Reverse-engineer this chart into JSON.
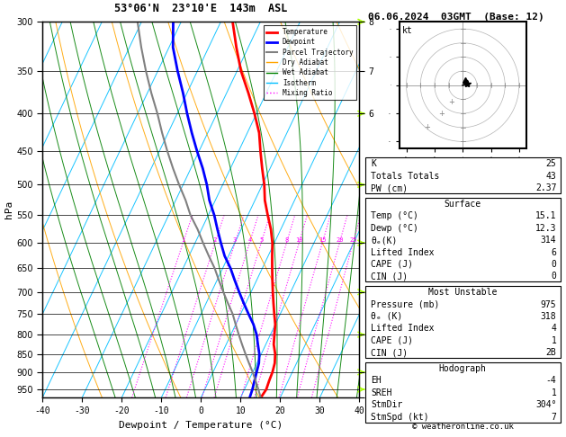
{
  "title_left": "53°06'N  23°10'E  143m  ASL",
  "title_right": "06.06.2024  03GMT  (Base: 12)",
  "xlabel": "Dewpoint / Temperature (°C)",
  "ylabel_left": "hPa",
  "xlim": [
    -40,
    40
  ],
  "pmin": 300,
  "pmax": 975,
  "temp_color": "#FF0000",
  "dewpoint_color": "#0000FF",
  "parcel_color": "#808080",
  "dry_adiabat_color": "#FFA500",
  "wet_adiabat_color": "#008000",
  "isotherm_color": "#00BFFF",
  "mixing_ratio_color": "#FF00FF",
  "legend_labels": [
    "Temperature",
    "Dewpoint",
    "Parcel Trajectory",
    "Dry Adiabat",
    "Wet Adiabat",
    "Isotherm",
    "Mixing Ratio"
  ],
  "legend_colors": [
    "#FF0000",
    "#0000FF",
    "#808080",
    "#FFA500",
    "#008000",
    "#00BFFF",
    "#FF00FF"
  ],
  "legend_styles": [
    "-",
    "-",
    "-",
    "-",
    "-",
    "-",
    ":"
  ],
  "legend_widths": [
    2.0,
    2.0,
    1.5,
    1.0,
    1.0,
    1.0,
    1.0
  ],
  "K": 25,
  "TT": 43,
  "PW": "2.37",
  "surf_temp": "15.1",
  "surf_dewp": "12.3",
  "theta_e_surf": "314",
  "lifted_index_surf": "6",
  "CAPE_surf": "0",
  "CIN_surf": "0",
  "mu_pressure": "975",
  "theta_e_mu": "318",
  "lifted_index_mu": "4",
  "CAPE_mu": "1",
  "CIN_mu": "2B",
  "EH": "-4",
  "SREH": "1",
  "StmDir": "304°",
  "StmSpd": "7",
  "copyright": "© weatheronline.co.uk"
}
